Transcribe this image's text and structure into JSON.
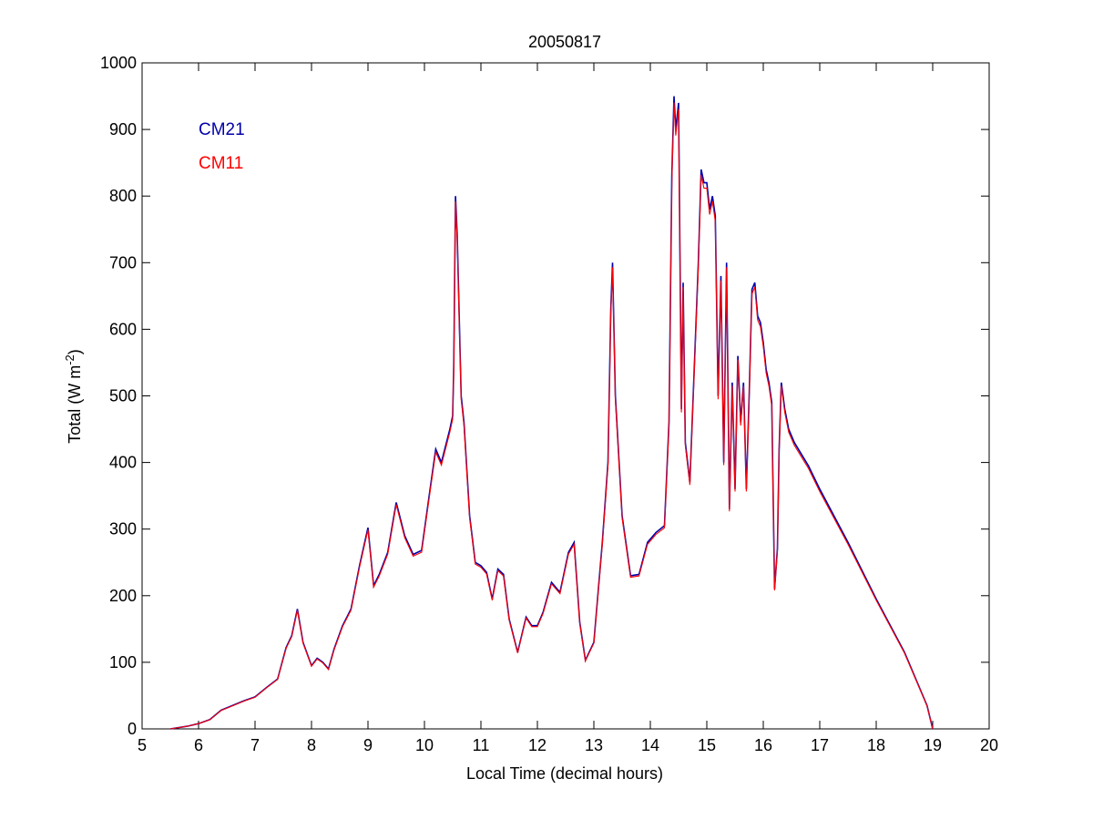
{
  "chart_data": {
    "type": "line",
    "title": "20050817",
    "xlabel": "Local Time (decimal hours)",
    "ylabel": {
      "main": "Total (W m",
      "sup": "-2",
      "end": ")"
    },
    "xlim": [
      5,
      20
    ],
    "ylim": [
      0,
      1000
    ],
    "xticks": [
      5,
      6,
      7,
      8,
      9,
      10,
      11,
      12,
      13,
      14,
      15,
      16,
      17,
      18,
      19,
      20
    ],
    "yticks": [
      0,
      100,
      200,
      300,
      400,
      500,
      600,
      700,
      800,
      900,
      1000
    ],
    "grid": false,
    "legend_placement": "top-left",
    "series": [
      {
        "name": "CM21",
        "color": "#0000aa"
      },
      {
        "name": "CM11",
        "color": "#ff0000"
      }
    ],
    "x": [
      5.5,
      5.8,
      6.0,
      6.2,
      6.4,
      6.6,
      6.8,
      7.0,
      7.2,
      7.4,
      7.55,
      7.65,
      7.75,
      7.85,
      8.0,
      8.1,
      8.2,
      8.3,
      8.4,
      8.55,
      8.7,
      8.85,
      9.0,
      9.1,
      9.2,
      9.35,
      9.5,
      9.65,
      9.8,
      9.95,
      10.1,
      10.2,
      10.3,
      10.45,
      10.5,
      10.52,
      10.55,
      10.58,
      10.65,
      10.7,
      10.8,
      10.9,
      11.0,
      11.1,
      11.2,
      11.3,
      11.4,
      11.5,
      11.65,
      11.8,
      11.9,
      12.0,
      12.1,
      12.25,
      12.4,
      12.55,
      12.65,
      12.75,
      12.85,
      13.0,
      13.15,
      13.25,
      13.3,
      13.33,
      13.38,
      13.5,
      13.65,
      13.8,
      13.95,
      14.1,
      14.25,
      14.33,
      14.38,
      14.42,
      14.45,
      14.5,
      14.55,
      14.58,
      14.62,
      14.7,
      14.75,
      14.85,
      14.9,
      14.95,
      15.0,
      15.05,
      15.1,
      15.15,
      15.2,
      15.25,
      15.3,
      15.35,
      15.4,
      15.45,
      15.5,
      15.55,
      15.6,
      15.65,
      15.7,
      15.75,
      15.8,
      15.85,
      15.9,
      15.95,
      16.0,
      16.05,
      16.1,
      16.15,
      16.2,
      16.25,
      16.28,
      16.32,
      16.38,
      16.45,
      16.55,
      16.8,
      17.0,
      17.5,
      18.0,
      18.5,
      18.9,
      19.0
    ],
    "values": [
      0,
      4,
      8,
      14,
      28,
      35,
      42,
      48,
      62,
      75,
      122,
      140,
      180,
      130,
      95,
      106,
      100,
      90,
      120,
      155,
      180,
      245,
      302,
      215,
      232,
      265,
      340,
      290,
      262,
      268,
      360,
      420,
      400,
      450,
      470,
      545,
      800,
      740,
      500,
      460,
      320,
      250,
      245,
      235,
      195,
      240,
      232,
      165,
      115,
      168,
      155,
      155,
      175,
      220,
      205,
      265,
      280,
      160,
      103,
      130,
      280,
      400,
      630,
      700,
      500,
      320,
      230,
      232,
      280,
      295,
      305,
      460,
      830,
      950,
      900,
      940,
      480,
      670,
      430,
      370,
      480,
      700,
      840,
      820,
      820,
      780,
      800,
      770,
      500,
      680,
      400,
      700,
      330,
      520,
      360,
      560,
      460,
      520,
      360,
      500,
      660,
      670,
      620,
      610,
      580,
      540,
      520,
      490,
      210,
      270,
      420,
      520,
      480,
      450,
      430,
      395,
      360,
      280,
      195,
      115,
      35,
      0
    ]
  }
}
